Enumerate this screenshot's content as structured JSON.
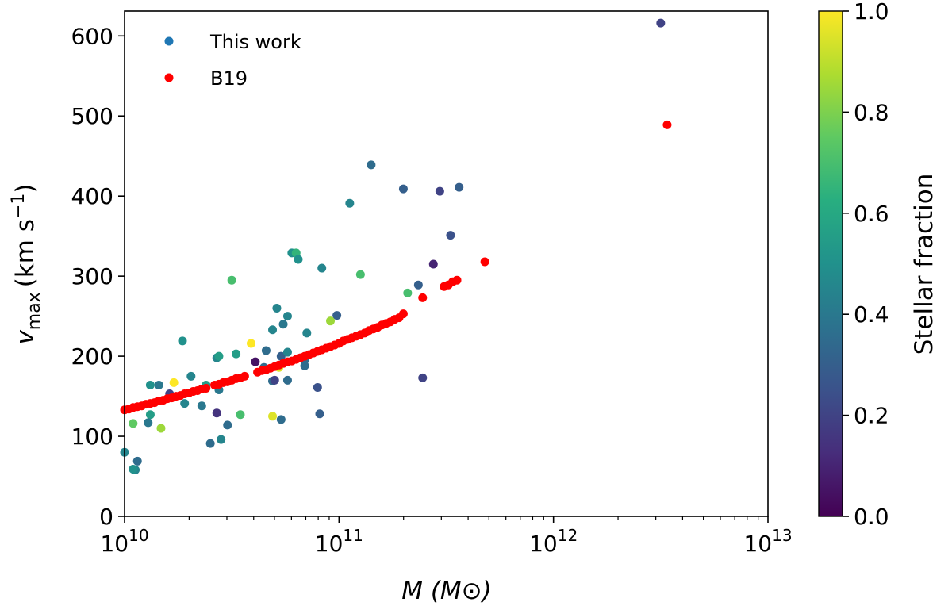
{
  "chart_data": {
    "type": "scatter",
    "title": "",
    "xlabel": "M (M⊙)",
    "xlabel_parts": {
      "var": "M",
      "open": "(",
      "sym": "M",
      "sub": "⊙",
      "close": ")"
    },
    "ylabel": "v_max (km s^-1)",
    "ylabel_parts": {
      "var": "v",
      "sub": "max",
      "unit": "(km s",
      "sup": "−1",
      "close": ")"
    },
    "xscale": "log",
    "xlim_log10": [
      10,
      13
    ],
    "ylim": [
      0,
      631
    ],
    "xticks": [
      {
        "base": "10",
        "exp": "10"
      },
      {
        "base": "10",
        "exp": "11"
      },
      {
        "base": "10",
        "exp": "12"
      },
      {
        "base": "10",
        "exp": "13"
      }
    ],
    "yticks": [
      "0",
      "100",
      "200",
      "300",
      "400",
      "500",
      "600"
    ],
    "grid": false,
    "legend_position": "top-left",
    "colorbar": {
      "label": "Stellar fraction",
      "range": [
        0,
        1
      ],
      "ticks": [
        "0.0",
        "0.2",
        "0.4",
        "0.6",
        "0.8",
        "1.0"
      ],
      "colormap": "viridis"
    },
    "series": [
      {
        "name": "This work",
        "legend_color": "#1f77b4",
        "color_by": "stellar_fraction",
        "points_log10M_vmax_fraction": [
          [
            10.0,
            80,
            0.45
          ],
          [
            10.05,
            58,
            0.45
          ],
          [
            10.78,
            329,
            0.5
          ],
          [
            10.8,
            329,
            0.65
          ],
          [
            10.81,
            321,
            0.5
          ],
          [
            10.5,
            295,
            0.7
          ],
          [
            10.71,
            260,
            0.45
          ],
          [
            10.76,
            250,
            0.45
          ],
          [
            10.74,
            240,
            0.4
          ],
          [
            10.69,
            233,
            0.45
          ],
          [
            10.85,
            229,
            0.45
          ],
          [
            10.27,
            219,
            0.5
          ],
          [
            10.59,
            216,
            1.0
          ],
          [
            10.43,
            198,
            0.45
          ],
          [
            10.44,
            200,
            0.55
          ],
          [
            10.52,
            203,
            0.55
          ],
          [
            10.66,
            207,
            0.35
          ],
          [
            10.73,
            200,
            0.3
          ],
          [
            10.76,
            205,
            0.45
          ],
          [
            10.61,
            193,
            0.05
          ],
          [
            10.65,
            186,
            0.35
          ],
          [
            10.72,
            186,
            0.95
          ],
          [
            10.84,
            188,
            0.35
          ],
          [
            10.31,
            175,
            0.45
          ],
          [
            10.23,
            167,
            1.0
          ],
          [
            10.12,
            164,
            0.5
          ],
          [
            10.16,
            164,
            0.4
          ],
          [
            10.38,
            164,
            0.55
          ],
          [
            10.21,
            153,
            0.2
          ],
          [
            10.44,
            158,
            0.4
          ],
          [
            10.69,
            169,
            0.35
          ],
          [
            10.7,
            170,
            0.2
          ],
          [
            10.76,
            170,
            0.35
          ],
          [
            10.28,
            141,
            0.45
          ],
          [
            10.36,
            138,
            0.4
          ],
          [
            10.12,
            127,
            0.55
          ],
          [
            10.43,
            129,
            0.15
          ],
          [
            10.54,
            127,
            0.7
          ],
          [
            10.11,
            117,
            0.4
          ],
          [
            10.04,
            116,
            0.75
          ],
          [
            10.17,
            110,
            0.85
          ],
          [
            10.69,
            125,
            0.95
          ],
          [
            10.73,
            121,
            0.35
          ],
          [
            10.48,
            114,
            0.35
          ],
          [
            10.45,
            96,
            0.45
          ],
          [
            10.4,
            91,
            0.35
          ],
          [
            10.06,
            69,
            0.35
          ],
          [
            10.04,
            59,
            0.5
          ],
          [
            11.15,
            439,
            0.35
          ],
          [
            11.3,
            409,
            0.3
          ],
          [
            11.47,
            406,
            0.2
          ],
          [
            11.56,
            411,
            0.3
          ],
          [
            11.05,
            391,
            0.45
          ],
          [
            11.52,
            351,
            0.25
          ],
          [
            11.44,
            315,
            0.1
          ],
          [
            10.92,
            310,
            0.45
          ],
          [
            11.1,
            302,
            0.7
          ],
          [
            11.37,
            289,
            0.3
          ],
          [
            11.32,
            279,
            0.7
          ],
          [
            10.99,
            251,
            0.3
          ],
          [
            10.96,
            244,
            0.85
          ],
          [
            10.84,
            195,
            0.35
          ],
          [
            10.9,
            161,
            0.25
          ],
          [
            11.39,
            173,
            0.2
          ],
          [
            10.91,
            128,
            0.3
          ],
          [
            12.5,
            616,
            0.2
          ]
        ]
      },
      {
        "name": "B19",
        "color": "#ff0000",
        "points_log10M_vmax": [
          [
            10.0,
            133
          ],
          [
            10.02,
            134
          ],
          [
            10.04,
            136
          ],
          [
            10.06,
            137
          ],
          [
            10.08,
            138
          ],
          [
            10.1,
            140
          ],
          [
            10.12,
            141
          ],
          [
            10.14,
            142
          ],
          [
            10.16,
            144
          ],
          [
            10.18,
            145
          ],
          [
            10.2,
            147
          ],
          [
            10.22,
            148
          ],
          [
            10.24,
            150
          ],
          [
            10.26,
            151
          ],
          [
            10.28,
            153
          ],
          [
            10.3,
            154
          ],
          [
            10.32,
            156
          ],
          [
            10.34,
            157
          ],
          [
            10.36,
            159
          ],
          [
            10.38,
            160
          ],
          [
            10.42,
            164
          ],
          [
            10.44,
            165
          ],
          [
            10.46,
            167
          ],
          [
            10.48,
            168
          ],
          [
            10.5,
            170
          ],
          [
            10.52,
            172
          ],
          [
            10.54,
            173
          ],
          [
            10.56,
            175
          ],
          [
            10.62,
            180
          ],
          [
            10.64,
            182
          ],
          [
            10.66,
            183
          ],
          [
            10.68,
            185
          ],
          [
            10.7,
            187
          ],
          [
            10.72,
            189
          ],
          [
            10.74,
            191
          ],
          [
            10.76,
            193
          ],
          [
            10.78,
            194
          ],
          [
            10.8,
            196
          ],
          [
            10.82,
            198
          ],
          [
            10.84,
            200
          ],
          [
            10.86,
            202
          ],
          [
            10.88,
            204
          ],
          [
            10.9,
            206
          ],
          [
            10.92,
            208
          ],
          [
            10.94,
            210
          ],
          [
            10.96,
            212
          ],
          [
            10.98,
            214
          ],
          [
            11.0,
            216
          ],
          [
            11.02,
            219
          ],
          [
            11.04,
            221
          ],
          [
            11.06,
            223
          ],
          [
            11.08,
            225
          ],
          [
            11.1,
            227
          ],
          [
            11.12,
            229
          ],
          [
            11.14,
            232
          ],
          [
            11.16,
            234
          ],
          [
            11.18,
            236
          ],
          [
            11.2,
            239
          ],
          [
            11.22,
            241
          ],
          [
            11.24,
            243
          ],
          [
            11.26,
            246
          ],
          [
            11.28,
            248
          ],
          [
            11.3,
            253
          ],
          [
            11.39,
            273
          ],
          [
            11.49,
            287
          ],
          [
            11.51,
            289
          ],
          [
            11.53,
            293
          ],
          [
            11.55,
            295
          ],
          [
            11.68,
            318
          ],
          [
            12.53,
            489
          ]
        ]
      }
    ]
  }
}
